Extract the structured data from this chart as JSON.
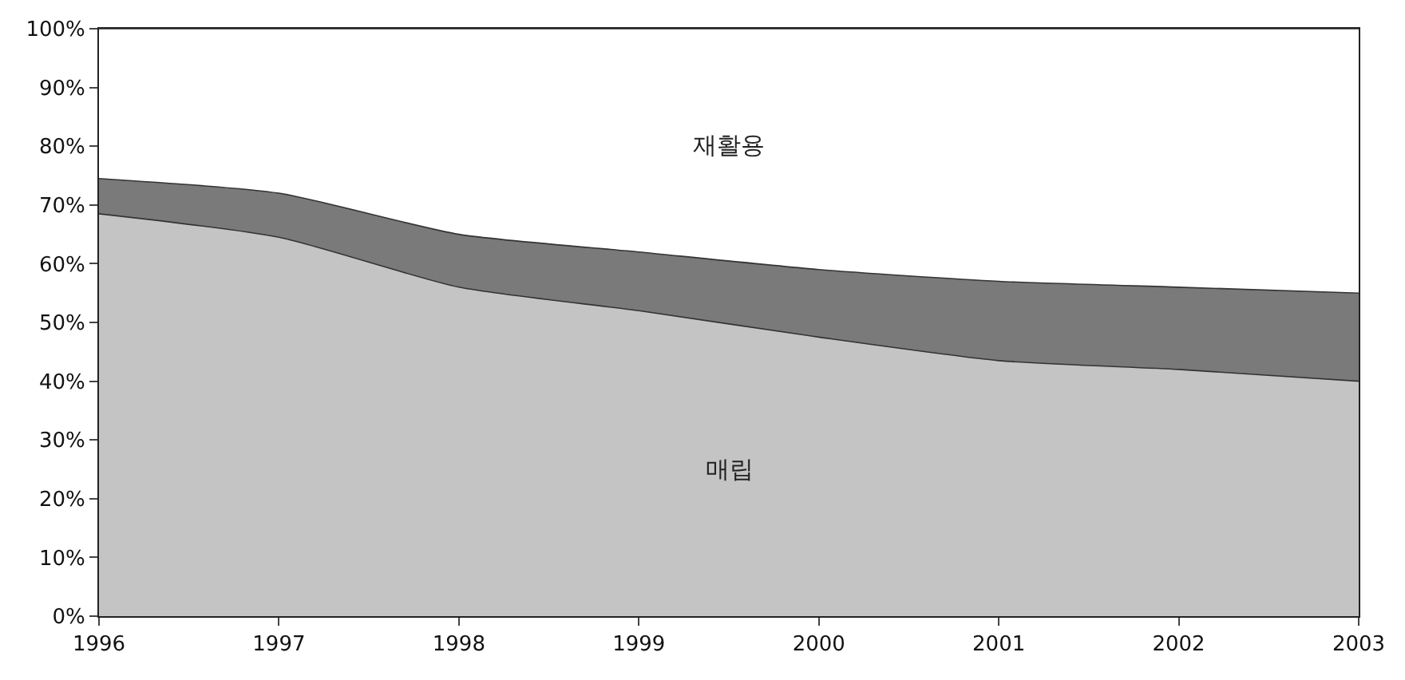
{
  "chart_data": {
    "type": "area",
    "stacked": true,
    "x": [
      1996,
      1997,
      1998,
      1999,
      2000,
      2001,
      2002,
      2003
    ],
    "series": [
      {
        "name": "매립",
        "color": "#c4c4c4",
        "values": [
          68.5,
          64.5,
          56,
          52,
          47.5,
          43.5,
          42,
          40
        ]
      },
      {
        "color": "#7a7a7a",
        "values": [
          6,
          7.5,
          9,
          10,
          11.5,
          13.5,
          14,
          15
        ]
      },
      {
        "name": "재활용",
        "color": "#ffffff",
        "values": [
          25.5,
          28,
          35,
          38,
          41,
          43,
          44,
          45
        ]
      }
    ],
    "xlim": [
      1996,
      2003
    ],
    "xticks": [
      1996,
      1997,
      1998,
      1999,
      2000,
      2001,
      2002,
      2003
    ],
    "ylim": [
      0,
      100
    ],
    "yticks": [
      {
        "value": 0,
        "label": "0%"
      },
      {
        "value": 10,
        "label": "10%"
      },
      {
        "value": 20,
        "label": "20%"
      },
      {
        "value": 30,
        "label": "30%"
      },
      {
        "value": 40,
        "label": "40%"
      },
      {
        "value": 50,
        "label": "50%"
      },
      {
        "value": 60,
        "label": "60%"
      },
      {
        "value": 70,
        "label": "70%"
      },
      {
        "value": 80,
        "label": "80%"
      },
      {
        "value": 90,
        "label": "90%"
      },
      {
        "value": 100,
        "label": "100%"
      }
    ],
    "legend": false
  }
}
